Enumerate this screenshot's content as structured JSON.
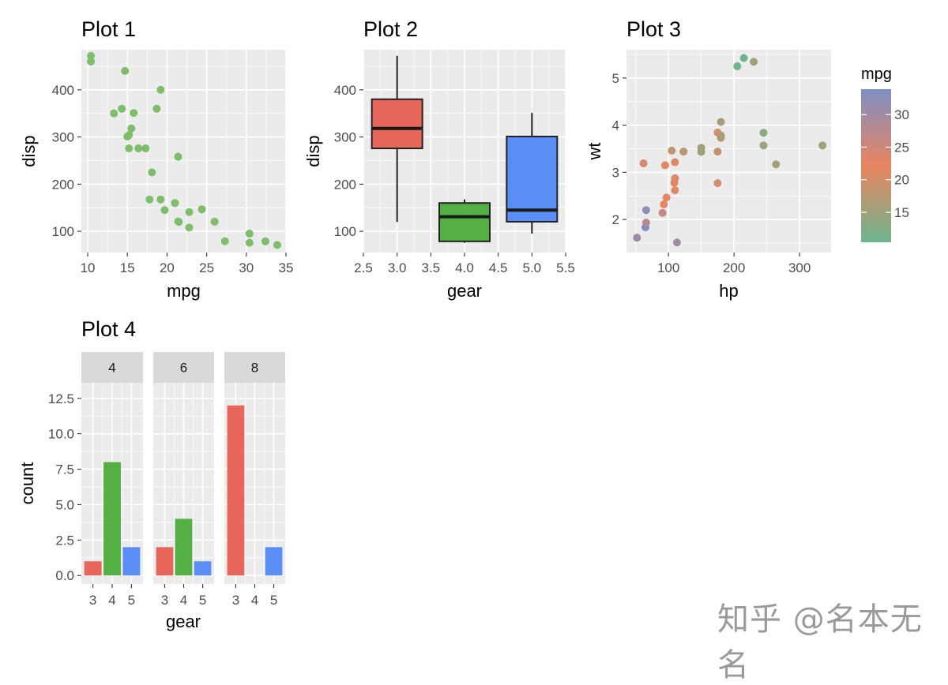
{
  "chart_data": [
    {
      "id": "p1",
      "type": "scatter",
      "title": "Plot 1",
      "xlabel": "mpg",
      "ylabel": "disp",
      "xlim": [
        9.2,
        35.0
      ],
      "ylim": [
        55,
        485
      ],
      "xticks": [
        10,
        15,
        20,
        25,
        30,
        35
      ],
      "yticks": [
        100,
        200,
        300,
        400
      ],
      "point_color": "#7dbd6c",
      "points": [
        [
          21.0,
          160
        ],
        [
          21.0,
          160
        ],
        [
          22.8,
          108
        ],
        [
          21.4,
          258
        ],
        [
          18.7,
          360
        ],
        [
          18.1,
          225
        ],
        [
          14.3,
          360
        ],
        [
          24.4,
          146.7
        ],
        [
          22.8,
          140.8
        ],
        [
          19.2,
          167.6
        ],
        [
          17.8,
          167.6
        ],
        [
          16.4,
          275.8
        ],
        [
          17.3,
          275.8
        ],
        [
          15.2,
          275.8
        ],
        [
          10.4,
          472
        ],
        [
          10.4,
          460
        ],
        [
          14.7,
          440
        ],
        [
          32.4,
          78.7
        ],
        [
          30.4,
          75.7
        ],
        [
          33.9,
          71.1
        ],
        [
          21.5,
          120.1
        ],
        [
          15.5,
          318
        ],
        [
          15.2,
          304
        ],
        [
          13.3,
          350
        ],
        [
          19.2,
          400
        ],
        [
          27.3,
          79
        ],
        [
          26.0,
          120.3
        ],
        [
          30.4,
          95.1
        ],
        [
          15.8,
          351
        ],
        [
          19.7,
          145
        ],
        [
          15.0,
          301
        ],
        [
          21.4,
          121
        ]
      ]
    },
    {
      "id": "p2",
      "type": "box",
      "title": "Plot 2",
      "xlabel": "gear",
      "ylabel": "disp",
      "xlim": [
        2.5,
        5.5
      ],
      "ylim": [
        55,
        485
      ],
      "xticks": [
        2.5,
        3.0,
        3.5,
        4.0,
        4.5,
        5.0,
        5.5
      ],
      "xtick_labels": [
        "2.5",
        "3.0",
        "3.5",
        "4.0",
        "4.5",
        "5.0",
        "5.5"
      ],
      "yticks": [
        100,
        200,
        300,
        400
      ],
      "boxes": [
        {
          "x": 3,
          "min": 120.1,
          "q1": 275.8,
          "median": 318,
          "q3": 380,
          "max": 472,
          "color": "#e8655a"
        },
        {
          "x": 4,
          "min": 75.7,
          "q1": 78.7,
          "median": 130.9,
          "q3": 160,
          "max": 167.6,
          "color": "#55b044"
        },
        {
          "x": 5,
          "min": 95.1,
          "q1": 120.3,
          "median": 145,
          "q3": 301,
          "max": 351,
          "color": "#5a8ef5"
        }
      ]
    },
    {
      "id": "p3",
      "type": "scatter",
      "title": "Plot 3",
      "xlabel": "hp",
      "ylabel": "wt",
      "xlim": [
        36,
        348
      ],
      "ylim": [
        1.3,
        5.6
      ],
      "xticks": [
        100,
        200,
        300
      ],
      "yticks": [
        2,
        3,
        4,
        5
      ],
      "legend": {
        "title": "mpg",
        "ticks": [
          15,
          20,
          25,
          30
        ],
        "range": [
          10.4,
          33.9
        ],
        "gradient": [
          "#6db58e",
          "#e88560",
          "#7f8fc4"
        ]
      },
      "points": [
        [
          110,
          2.62,
          21.0
        ],
        [
          110,
          2.875,
          21.0
        ],
        [
          93,
          2.32,
          22.8
        ],
        [
          110,
          3.215,
          21.4
        ],
        [
          175,
          3.44,
          18.7
        ],
        [
          105,
          3.46,
          18.1
        ],
        [
          245,
          3.57,
          14.3
        ],
        [
          62,
          3.19,
          24.4
        ],
        [
          95,
          3.15,
          22.8
        ],
        [
          123,
          3.44,
          19.2
        ],
        [
          123,
          3.44,
          17.8
        ],
        [
          180,
          4.07,
          16.4
        ],
        [
          180,
          3.73,
          17.3
        ],
        [
          180,
          3.78,
          15.2
        ],
        [
          205,
          5.25,
          10.4
        ],
        [
          215,
          5.424,
          10.4
        ],
        [
          230,
          5.345,
          14.7
        ],
        [
          66,
          2.2,
          32.4
        ],
        [
          52,
          1.615,
          30.4
        ],
        [
          65,
          1.835,
          33.9
        ],
        [
          97,
          2.465,
          21.5
        ],
        [
          150,
          3.52,
          15.5
        ],
        [
          150,
          3.435,
          15.2
        ],
        [
          245,
          3.84,
          13.3
        ],
        [
          175,
          3.845,
          19.2
        ],
        [
          66,
          1.935,
          27.3
        ],
        [
          91,
          2.14,
          26.0
        ],
        [
          113,
          1.513,
          30.4
        ],
        [
          264,
          3.17,
          15.8
        ],
        [
          175,
          2.77,
          19.7
        ],
        [
          335,
          3.57,
          15.0
        ],
        [
          109,
          2.78,
          21.4
        ]
      ]
    },
    {
      "id": "p4",
      "type": "bar",
      "title": "Plot 4",
      "xlabel": "gear",
      "ylabel": "count",
      "ylim": [
        -0.6,
        13.6
      ],
      "yticks": [
        0.0,
        2.5,
        5.0,
        7.5,
        10.0,
        12.5
      ],
      "ytick_labels": [
        "0.0",
        "2.5",
        "5.0",
        "7.5",
        "10.0",
        "12.5"
      ],
      "categories": [
        "3",
        "4",
        "5"
      ],
      "category_colors": [
        "#e8655a",
        "#55b044",
        "#5a8ef5"
      ],
      "facets": [
        {
          "label": "4",
          "values": [
            1,
            8,
            2
          ]
        },
        {
          "label": "6",
          "values": [
            2,
            4,
            1
          ]
        },
        {
          "label": "8",
          "values": [
            12,
            0,
            2
          ]
        }
      ]
    }
  ],
  "watermark": "知乎 @名本无名"
}
